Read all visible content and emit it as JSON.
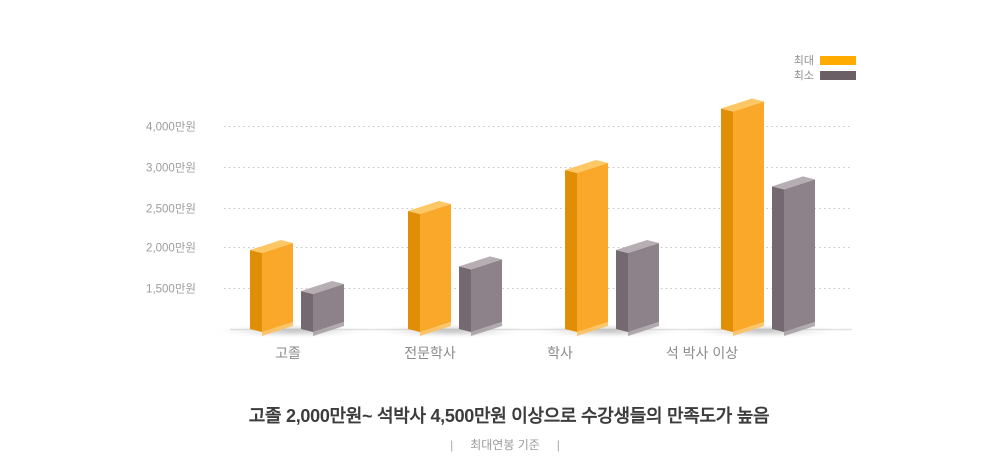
{
  "legend": {
    "items": [
      {
        "label": "최대",
        "color": "#FFAB00"
      },
      {
        "label": "최소",
        "color": "#6A5F64"
      }
    ]
  },
  "chart_data": {
    "type": "bar",
    "title": "",
    "categories": [
      "고졸",
      "전문학사",
      "학사",
      "석 박사 이상"
    ],
    "series": [
      {
        "name": "최대",
        "values": [
          2000,
          2500,
          3000,
          4500
        ],
        "colors": {
          "front": "#FAA829",
          "side": "#E18E07",
          "top": "#FCC765",
          "base": "#FDBE55"
        }
      },
      {
        "name": "최소",
        "values": [
          1500,
          1800,
          2000,
          2800
        ],
        "colors": {
          "front": "#8D8289",
          "side": "#746871",
          "top": "#B6AEB3",
          "base": "#A59CA2"
        }
      }
    ],
    "yticks": [
      {
        "label": "4,000만원",
        "value": 4000
      },
      {
        "label": "3,000만원",
        "value": 3000
      },
      {
        "label": "2,500만원",
        "value": 2500
      },
      {
        "label": "2,000만원",
        "value": 2000
      },
      {
        "label": "1,500만원",
        "value": 1500
      }
    ],
    "unit": "만원",
    "ylim": [
      0,
      4500
    ],
    "grid": "dotted-horizontal",
    "legend_position": "top-right",
    "note": "축 간격은 등간격 표기(비선형 눈금)"
  },
  "caption": {
    "title": "고졸 2,000만원~ 석박사 4,500만원 이상으로 수강생들의 만족도가 높음",
    "note": "최대연봉 기준",
    "separator": "|"
  }
}
